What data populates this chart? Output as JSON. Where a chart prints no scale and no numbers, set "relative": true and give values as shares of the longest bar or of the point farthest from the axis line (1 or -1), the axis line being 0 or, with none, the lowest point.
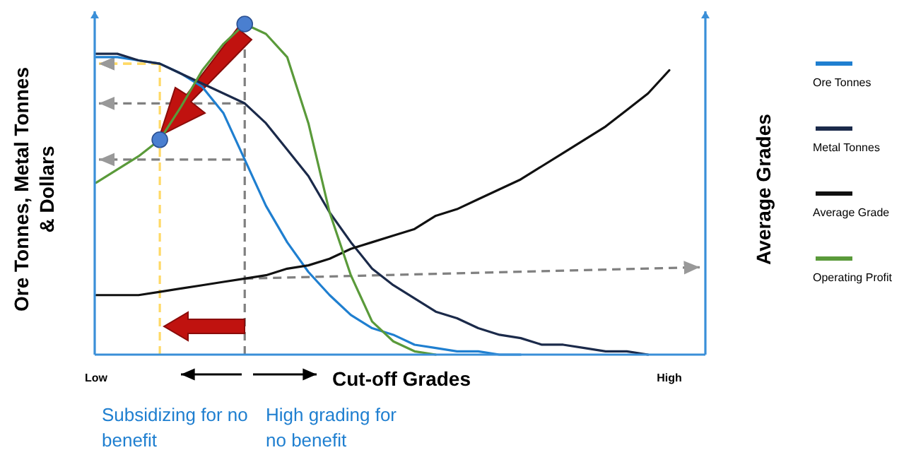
{
  "chart_data": {
    "type": "line",
    "relative": true,
    "xlabel": "Cut-off Grades",
    "ylabel": "Ore Tonnes, Metal Tonnes & Dollars",
    "y2label": "Average Grades",
    "legend": "right",
    "grid": false,
    "marker": "none",
    "line_style": "solid",
    "categories": [
      "Low",
      null,
      null,
      null,
      null,
      null,
      null,
      null,
      null,
      null,
      null,
      null,
      null,
      null,
      null,
      null,
      null,
      null,
      null,
      null,
      null,
      null,
      null,
      null,
      null,
      null,
      null,
      "High",
      null
    ],
    "series": [
      {
        "name": "Ore Tonnes",
        "color": "#1f7fd0",
        "values": [
          0.9,
          0.9,
          0.89,
          0.88,
          0.85,
          0.81,
          0.73,
          0.59,
          0.45,
          0.34,
          0.25,
          0.18,
          0.12,
          0.08,
          0.06,
          0.03,
          0.02,
          0.01,
          0.01,
          0.0,
          0.0,
          null,
          null,
          null,
          null,
          null,
          null,
          null,
          null
        ]
      },
      {
        "name": "Metal  Tonnes",
        "color": "#1b2a4a",
        "values": [
          0.91,
          0.91,
          0.89,
          0.88,
          0.85,
          0.82,
          0.79,
          0.76,
          0.7,
          0.62,
          0.54,
          0.43,
          0.34,
          0.26,
          0.21,
          0.17,
          0.13,
          0.11,
          0.08,
          0.06,
          0.05,
          0.03,
          0.03,
          0.02,
          0.01,
          0.01,
          0.0,
          null,
          null
        ]
      },
      {
        "name": "Average Grade",
        "color": "#111111",
        "axis": "y2",
        "values": [
          0.18,
          0.18,
          0.18,
          0.19,
          0.2,
          0.21,
          0.22,
          0.23,
          0.24,
          0.26,
          0.27,
          0.29,
          0.32,
          0.34,
          0.36,
          0.38,
          0.42,
          0.44,
          0.47,
          0.5,
          0.53,
          0.57,
          0.61,
          0.65,
          0.69,
          0.74,
          0.79,
          0.86,
          null
        ]
      },
      {
        "name": "Operating Profit",
        "color": "#5a9a3a",
        "values": [
          0.52,
          0.56,
          0.6,
          0.65,
          0.75,
          0.86,
          0.94,
          1.0,
          0.97,
          0.9,
          0.7,
          0.43,
          0.24,
          0.1,
          0.04,
          0.01,
          0.0,
          null,
          null,
          null,
          null,
          null,
          null,
          null,
          null,
          null,
          null,
          null,
          null
        ]
      },
      {
        "type": "scatter",
        "color": "#4a7fd0",
        "marker": "circle",
        "values": [
          null,
          null,
          null,
          0.65,
          null,
          null,
          null,
          1.0,
          null,
          null,
          null,
          null,
          null,
          null,
          null,
          null,
          null,
          null,
          null,
          null,
          null,
          null,
          null,
          null,
          null,
          null,
          null,
          null,
          null
        ]
      }
    ],
    "annotations": [
      "Subsidizing for no benefit",
      "High grading for no benefit"
    ]
  }
}
